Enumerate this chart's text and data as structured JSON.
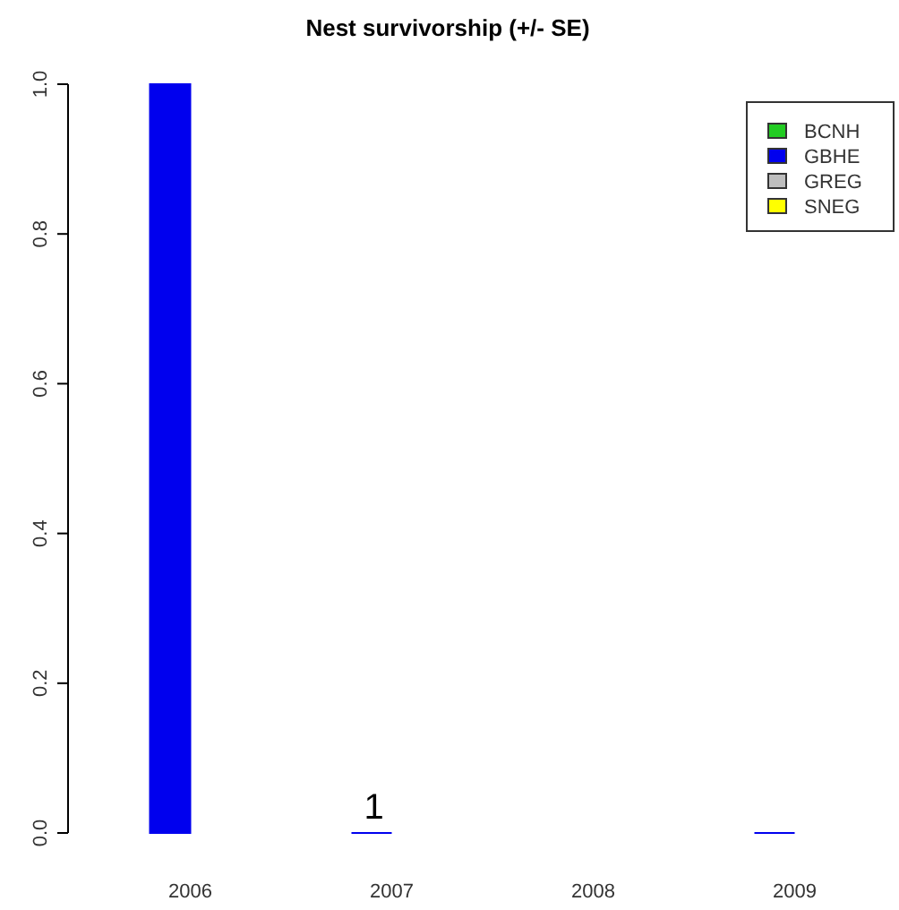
{
  "chart_data": {
    "type": "bar",
    "title": "Nest survivorship (+/- SE)",
    "categories": [
      "2006",
      "2007",
      "2008",
      "2009"
    ],
    "series": [
      {
        "name": "BCNH",
        "color": "#22cc22",
        "values": [
          null,
          null,
          null,
          null
        ]
      },
      {
        "name": "GBHE",
        "color": "#0000ee",
        "values": [
          1,
          0,
          null,
          0
        ]
      },
      {
        "name": "GREG",
        "color": "#bebebe",
        "values": [
          null,
          null,
          null,
          null
        ]
      },
      {
        "name": "SNEG",
        "color": "#ffff00",
        "values": [
          null,
          null,
          null,
          null
        ]
      }
    ],
    "ylim": [
      0,
      1
    ],
    "yticks": [
      {
        "value": 0,
        "label": "0.0"
      },
      {
        "value": 0.2,
        "label": "0.2"
      },
      {
        "value": 0.4,
        "label": "0.4"
      },
      {
        "value": 0.6,
        "label": "0.6"
      },
      {
        "value": 0.8,
        "label": "0.8"
      },
      {
        "value": 1,
        "label": "1.0"
      }
    ],
    "grid": false,
    "legend": "top right",
    "annotations": [
      {
        "text": "1",
        "x": "2007",
        "y": 0
      }
    ]
  }
}
